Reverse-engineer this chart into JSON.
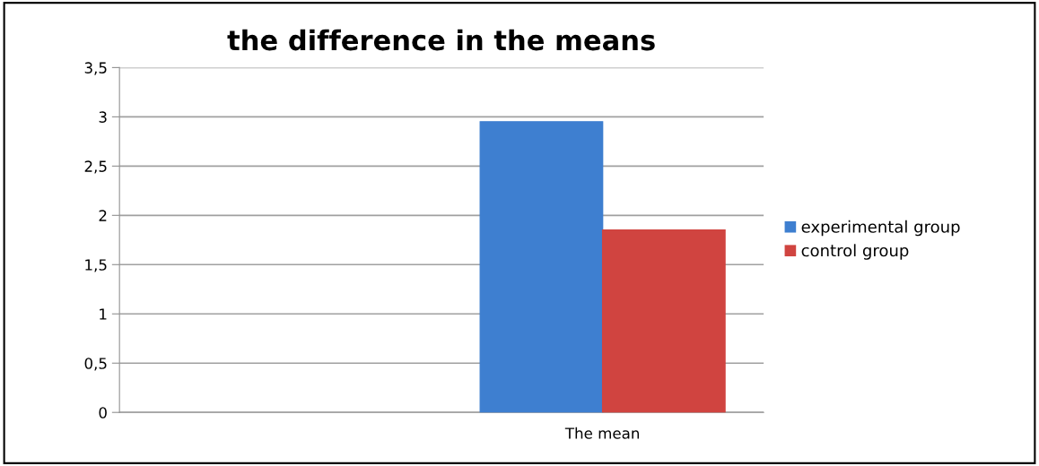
{
  "chart_data": {
    "type": "bar",
    "title": "the difference in the means",
    "categories": [
      null,
      "The mean"
    ],
    "series": [
      {
        "name": "experimental group",
        "color": "#3e7fd0",
        "values": [
          null,
          2.95
        ]
      },
      {
        "name": "control group",
        "color": "#d04440",
        "values": [
          null,
          1.85
        ]
      }
    ],
    "ylim": [
      0,
      3.5
    ],
    "yticks": [
      0,
      {
        "value": 0.5,
        "label": "0,5"
      },
      1,
      {
        "value": 1.5,
        "label": "1,5"
      },
      2,
      {
        "value": 2.5,
        "label": "2,5"
      },
      3,
      {
        "value": 3.5,
        "label": "3,5"
      }
    ],
    "grid": "y",
    "legend": "right"
  }
}
